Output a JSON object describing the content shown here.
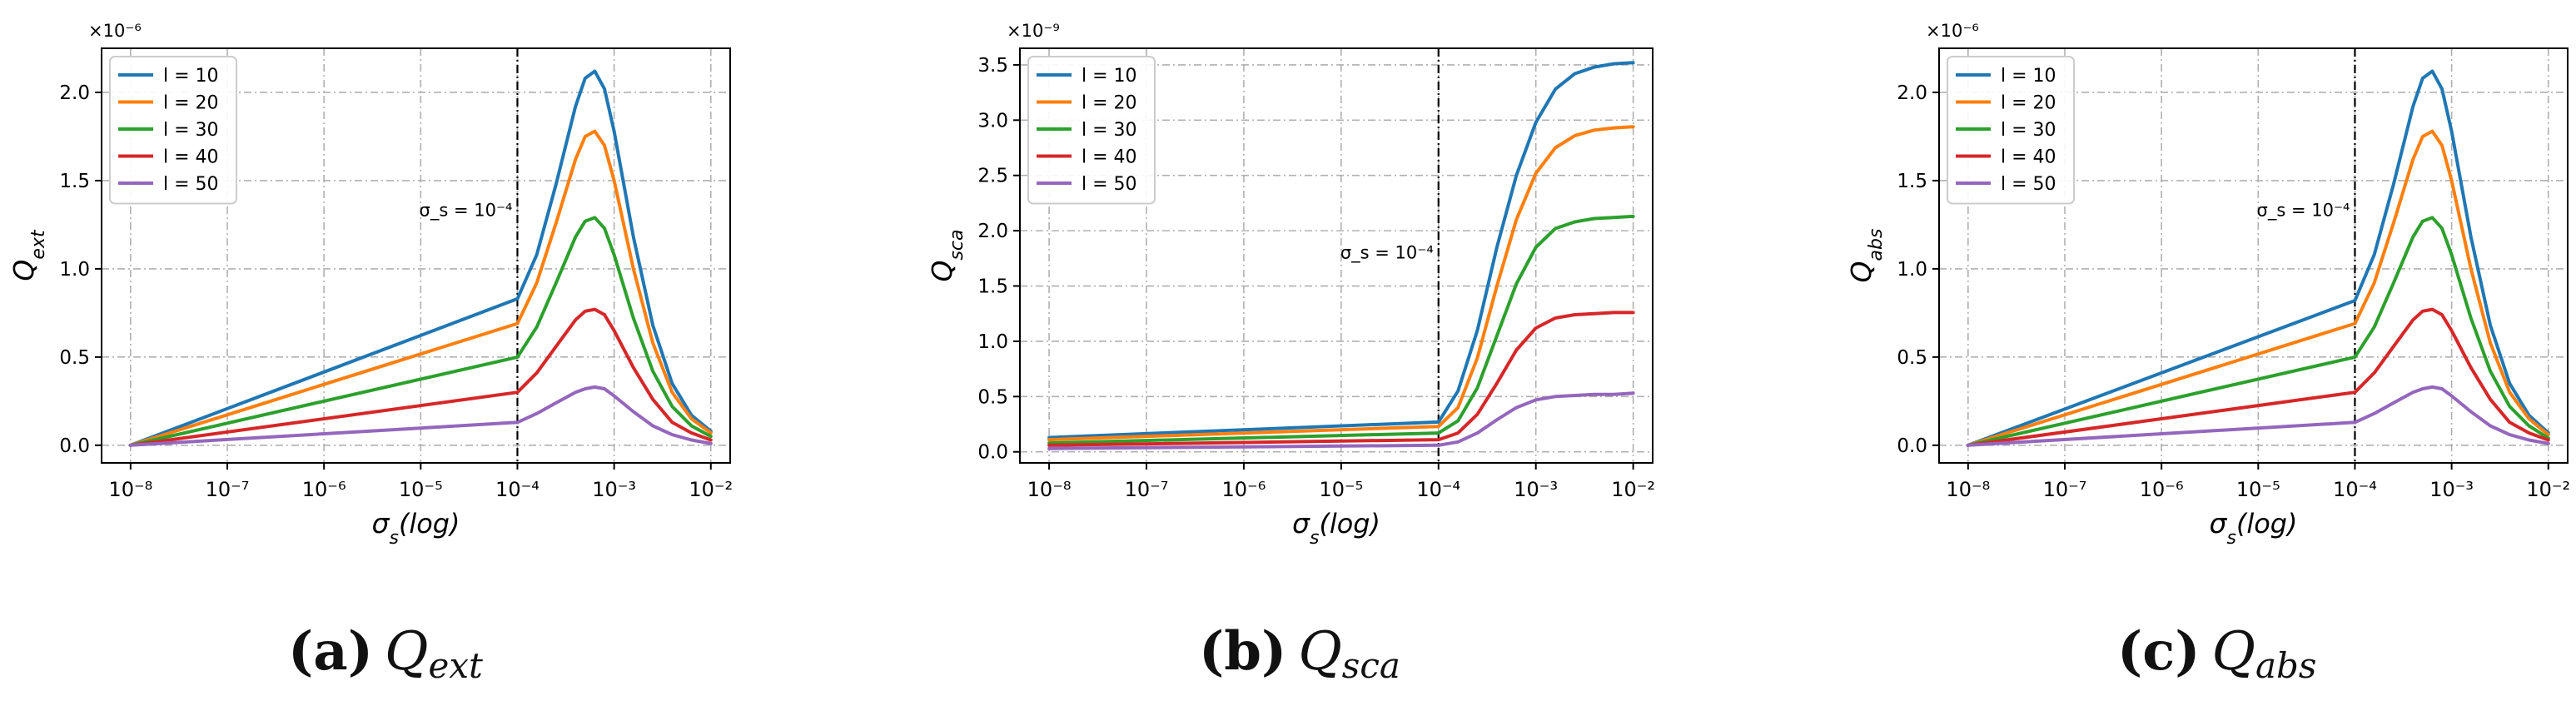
{
  "chart_data": [
    {
      "type": "line",
      "id": "a",
      "title": "",
      "xlabel": "σ_s(log)",
      "ylabel": "Q_ext",
      "y_multiplier": "×10⁻⁶",
      "xscale": "log",
      "xlim": [
        -8.3,
        -1.8
      ],
      "ylim": [
        -0.1,
        2.25
      ],
      "x_ticks": [
        -8,
        -7,
        -6,
        -5,
        -4,
        -3,
        -2
      ],
      "x_tick_labels": [
        "10⁻⁸",
        "10⁻⁷",
        "10⁻⁶",
        "10⁻⁵",
        "10⁻⁴",
        "10⁻³",
        "10⁻²"
      ],
      "y_ticks": [
        0.0,
        0.5,
        1.0,
        1.5,
        2.0
      ],
      "y_tick_labels": [
        "0.0",
        "0.5",
        "1.0",
        "1.5",
        "2.0"
      ],
      "grid": true,
      "legend": "top-left",
      "vline": {
        "x": -4,
        "label": "σ_s = 10⁻⁴",
        "label_y": 1.3
      },
      "x": [
        -8,
        -4,
        -3.8,
        -3.6,
        -3.4,
        -3.3,
        -3.2,
        -3.1,
        -3.0,
        -2.8,
        -2.6,
        -2.4,
        -2.2,
        -2.0
      ],
      "series": [
        {
          "name": "l = 10",
          "color": "#1f77b4",
          "values": [
            0.0,
            0.83,
            1.08,
            1.48,
            1.92,
            2.08,
            2.12,
            2.02,
            1.78,
            1.18,
            0.68,
            0.35,
            0.17,
            0.08
          ]
        },
        {
          "name": "l = 20",
          "color": "#ff7f0e",
          "values": [
            0.0,
            0.69,
            0.92,
            1.26,
            1.62,
            1.75,
            1.78,
            1.7,
            1.5,
            1.0,
            0.58,
            0.3,
            0.15,
            0.07
          ]
        },
        {
          "name": "l = 30",
          "color": "#2ca02c",
          "values": [
            0.0,
            0.5,
            0.67,
            0.92,
            1.18,
            1.27,
            1.29,
            1.23,
            1.08,
            0.72,
            0.42,
            0.22,
            0.11,
            0.05
          ]
        },
        {
          "name": "l = 40",
          "color": "#d62728",
          "values": [
            0.0,
            0.3,
            0.41,
            0.56,
            0.71,
            0.76,
            0.77,
            0.74,
            0.65,
            0.44,
            0.26,
            0.13,
            0.07,
            0.03
          ]
        },
        {
          "name": "l = 50",
          "color": "#9467bd",
          "values": [
            0.0,
            0.13,
            0.18,
            0.24,
            0.3,
            0.32,
            0.33,
            0.32,
            0.28,
            0.19,
            0.11,
            0.06,
            0.03,
            0.01
          ]
        }
      ]
    },
    {
      "type": "line",
      "id": "b",
      "title": "",
      "xlabel": "σ_s(log)",
      "ylabel": "Q_sca",
      "y_multiplier": "×10⁻⁹",
      "xscale": "log",
      "xlim": [
        -8.3,
        -1.8
      ],
      "ylim": [
        -0.1,
        3.65
      ],
      "x_ticks": [
        -8,
        -7,
        -6,
        -5,
        -4,
        -3,
        -2
      ],
      "x_tick_labels": [
        "10⁻⁸",
        "10⁻⁷",
        "10⁻⁶",
        "10⁻⁵",
        "10⁻⁴",
        "10⁻³",
        "10⁻²"
      ],
      "y_ticks": [
        0.0,
        0.5,
        1.0,
        1.5,
        2.0,
        2.5,
        3.0,
        3.5
      ],
      "y_tick_labels": [
        "0.0",
        "0.5",
        "1.0",
        "1.5",
        "2.0",
        "2.5",
        "3.0",
        "3.5"
      ],
      "grid": true,
      "legend": "top-left",
      "vline": {
        "x": -4,
        "label": "σ_s = 10⁻⁴",
        "label_y": 1.75
      },
      "x": [
        -8,
        -4,
        -3.8,
        -3.6,
        -3.4,
        -3.2,
        -3.0,
        -2.8,
        -2.6,
        -2.4,
        -2.2,
        -2.0
      ],
      "series": [
        {
          "name": "l = 10",
          "color": "#1f77b4",
          "values": [
            0.13,
            0.27,
            0.55,
            1.1,
            1.85,
            2.5,
            2.98,
            3.28,
            3.42,
            3.48,
            3.51,
            3.52
          ]
        },
        {
          "name": "l = 20",
          "color": "#ff7f0e",
          "values": [
            0.11,
            0.23,
            0.4,
            0.85,
            1.5,
            2.1,
            2.52,
            2.75,
            2.86,
            2.91,
            2.93,
            2.94
          ]
        },
        {
          "name": "l = 30",
          "color": "#2ca02c",
          "values": [
            0.08,
            0.17,
            0.28,
            0.58,
            1.05,
            1.52,
            1.85,
            2.02,
            2.08,
            2.11,
            2.12,
            2.13
          ]
        },
        {
          "name": "l = 40",
          "color": "#d62728",
          "values": [
            0.06,
            0.11,
            0.17,
            0.34,
            0.62,
            0.92,
            1.12,
            1.21,
            1.24,
            1.25,
            1.26,
            1.26
          ]
        },
        {
          "name": "l = 50",
          "color": "#9467bd",
          "values": [
            0.03,
            0.06,
            0.09,
            0.17,
            0.29,
            0.4,
            0.47,
            0.5,
            0.51,
            0.52,
            0.52,
            0.53
          ]
        }
      ]
    },
    {
      "type": "line",
      "id": "c",
      "title": "",
      "xlabel": "σ_s(log)",
      "ylabel": "Q_abs",
      "y_multiplier": "×10⁻⁶",
      "xscale": "log",
      "xlim": [
        -8.3,
        -1.8
      ],
      "ylim": [
        -0.1,
        2.25
      ],
      "x_ticks": [
        -8,
        -7,
        -6,
        -5,
        -4,
        -3,
        -2
      ],
      "x_tick_labels": [
        "10⁻⁸",
        "10⁻⁷",
        "10⁻⁶",
        "10⁻⁵",
        "10⁻⁴",
        "10⁻³",
        "10⁻²"
      ],
      "y_ticks": [
        0.0,
        0.5,
        1.0,
        1.5,
        2.0
      ],
      "y_tick_labels": [
        "0.0",
        "0.5",
        "1.0",
        "1.5",
        "2.0"
      ],
      "grid": true,
      "legend": "top-left",
      "vline": {
        "x": -4,
        "label": "σ_s = 10⁻⁴",
        "label_y": 1.3
      },
      "x": [
        -8,
        -4,
        -3.8,
        -3.6,
        -3.4,
        -3.3,
        -3.2,
        -3.1,
        -3.0,
        -2.8,
        -2.6,
        -2.4,
        -2.2,
        -2.0
      ],
      "series": [
        {
          "name": "l = 10",
          "color": "#1f77b4",
          "values": [
            0.0,
            0.82,
            1.08,
            1.48,
            1.92,
            2.08,
            2.12,
            2.02,
            1.78,
            1.18,
            0.68,
            0.35,
            0.17,
            0.07
          ]
        },
        {
          "name": "l = 20",
          "color": "#ff7f0e",
          "values": [
            0.0,
            0.69,
            0.92,
            1.26,
            1.62,
            1.75,
            1.78,
            1.7,
            1.5,
            1.0,
            0.58,
            0.3,
            0.15,
            0.06
          ]
        },
        {
          "name": "l = 30",
          "color": "#2ca02c",
          "values": [
            0.0,
            0.5,
            0.67,
            0.92,
            1.18,
            1.27,
            1.29,
            1.23,
            1.08,
            0.72,
            0.42,
            0.22,
            0.11,
            0.04
          ]
        },
        {
          "name": "l = 40",
          "color": "#d62728",
          "values": [
            0.0,
            0.3,
            0.41,
            0.56,
            0.71,
            0.76,
            0.77,
            0.74,
            0.65,
            0.44,
            0.26,
            0.13,
            0.07,
            0.03
          ]
        },
        {
          "name": "l = 50",
          "color": "#9467bd",
          "values": [
            0.0,
            0.13,
            0.18,
            0.24,
            0.3,
            0.32,
            0.33,
            0.32,
            0.28,
            0.19,
            0.11,
            0.06,
            0.03,
            0.01
          ]
        }
      ]
    }
  ],
  "captions": [
    {
      "tag": "(a)",
      "symbol": "Q",
      "sub": "ext"
    },
    {
      "tag": "(b)",
      "symbol": "Q",
      "sub": "sca"
    },
    {
      "tag": "(c)",
      "symbol": "Q",
      "sub": "abs"
    }
  ]
}
